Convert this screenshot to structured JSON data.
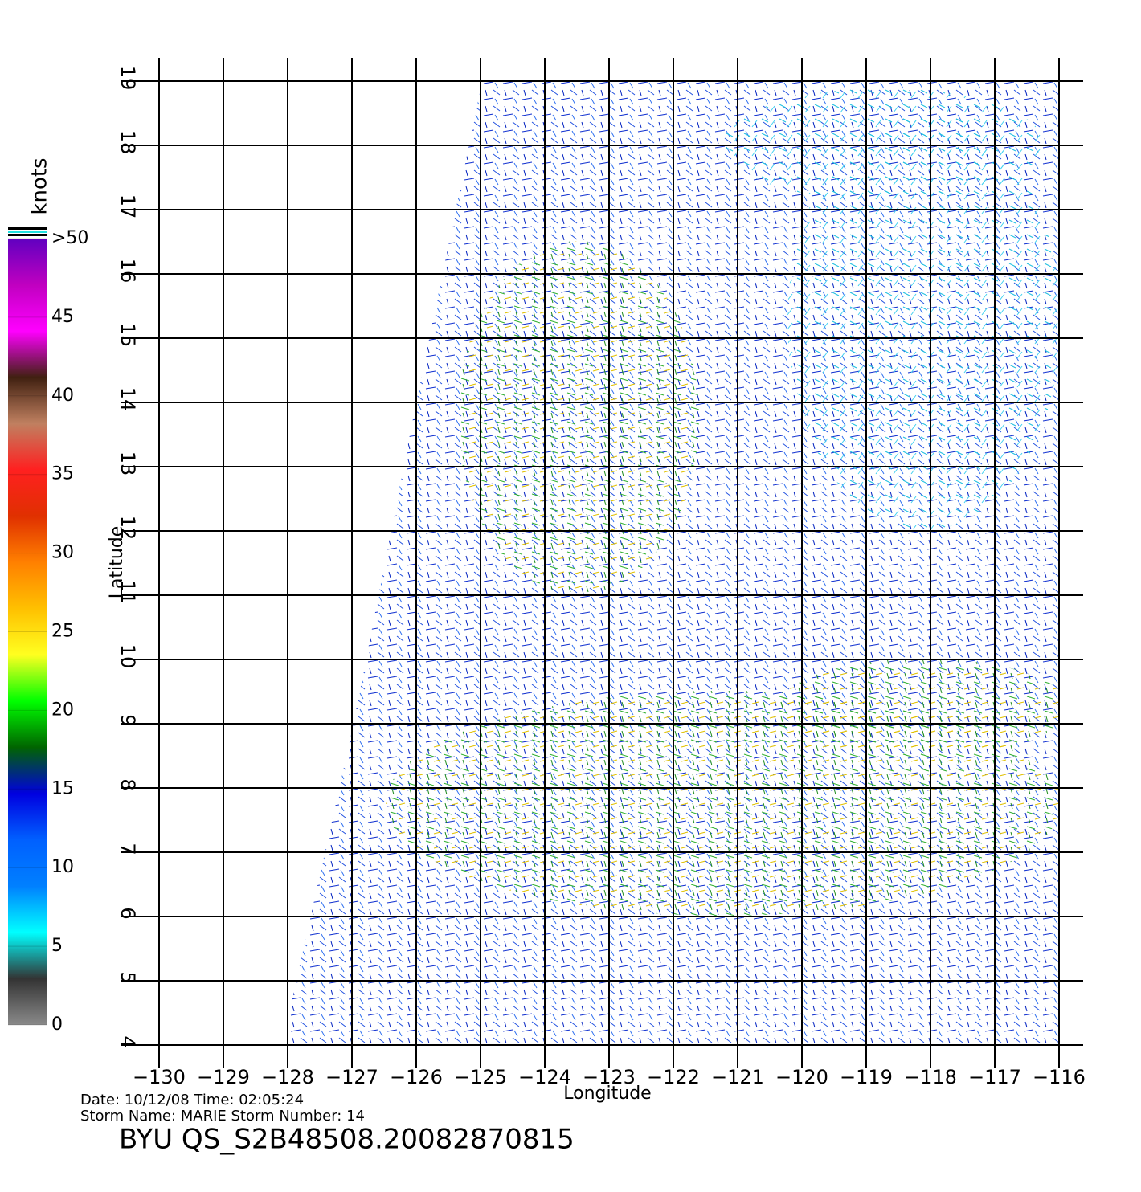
{
  "chart_data": {
    "type": "wind-vector-map",
    "xlabel": "Longitude",
    "ylabel": "Latitude",
    "xlim": [
      -130,
      -116
    ],
    "ylim": [
      4,
      19
    ],
    "xticks": [
      {
        "value": -130,
        "label": "−130"
      },
      {
        "value": -129,
        "label": "−129"
      },
      {
        "value": -128,
        "label": "−128"
      },
      {
        "value": -127,
        "label": "−127"
      },
      {
        "value": -126,
        "label": "−126"
      },
      {
        "value": -125,
        "label": "−125"
      },
      {
        "value": -124,
        "label": "−124"
      },
      {
        "value": -123,
        "label": "−123"
      },
      {
        "value": -122,
        "label": "−122"
      },
      {
        "value": -121,
        "label": "−121"
      },
      {
        "value": -120,
        "label": "−120"
      },
      {
        "value": -119,
        "label": "−119"
      },
      {
        "value": -118,
        "label": "−118"
      },
      {
        "value": -117,
        "label": "−117"
      },
      {
        "value": -116,
        "label": "−116"
      }
    ],
    "yticks": [
      4,
      5,
      6,
      7,
      8,
      9,
      10,
      11,
      12,
      13,
      14,
      15,
      16,
      17,
      18,
      19
    ],
    "grid": true,
    "colorbar": {
      "label": "knots",
      "lim": [
        0,
        50
      ],
      "ticks": [
        0,
        5,
        10,
        15,
        20,
        25,
        30,
        35,
        40,
        45,
        {
          "value": 50,
          "label": ">50"
        }
      ],
      "colors": [
        "#8a8a8a",
        "#333333",
        "#00ffff",
        "#0080ff",
        "#0060ff",
        "#0000e0",
        "#006400",
        "#00ff00",
        "#ffff20",
        "#ffc000",
        "#ff8000",
        "#e03000",
        "#ff2020",
        "#c08060",
        "#402010",
        "#ff00ff",
        "#c000c0",
        "#6000c0"
      ]
    },
    "date_line": "Date:  10/12/08   Time:  02:05:24",
    "storm_line": "Storm  Name:  MARIE    Storm  Number:  14",
    "title": "BYU  QS_S2B48508.20082870815"
  }
}
